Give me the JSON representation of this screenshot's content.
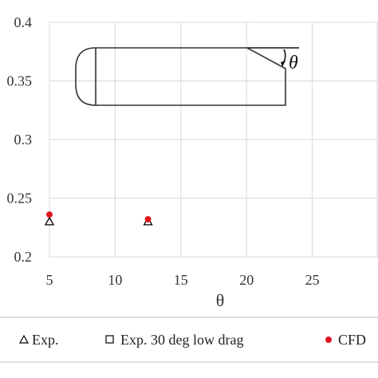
{
  "chart_data": {
    "type": "scatter",
    "xlabel": "θ",
    "ylabel": "",
    "xlim": [
      5,
      30
    ],
    "ylim": [
      0.2,
      0.4
    ],
    "x_ticks": [
      5,
      10,
      15,
      20,
      25
    ],
    "y_ticks": [
      0.2,
      0.25,
      0.3,
      0.35,
      0.4
    ],
    "x_tick_labels": [
      "5",
      "10",
      "15",
      "20",
      "25"
    ],
    "y_tick_labels": [
      "0.2",
      "0.25",
      "0.3",
      "0.35",
      "0.4"
    ],
    "grid": true,
    "legend_position": "bottom",
    "series": [
      {
        "name": "Exp.",
        "marker": "triangle",
        "color": "#000000",
        "x": [
          5,
          12.5
        ],
        "y": [
          0.23,
          0.23
        ]
      },
      {
        "name": "Exp. 30 deg low drag",
        "marker": "square",
        "color": "#000000",
        "x": [],
        "y": []
      },
      {
        "name": "CFD",
        "marker": "circle",
        "color": "#e0141e",
        "x": [
          5,
          12.5
        ],
        "y": [
          0.236,
          0.232
        ]
      }
    ],
    "inset_annotation": "θ"
  }
}
